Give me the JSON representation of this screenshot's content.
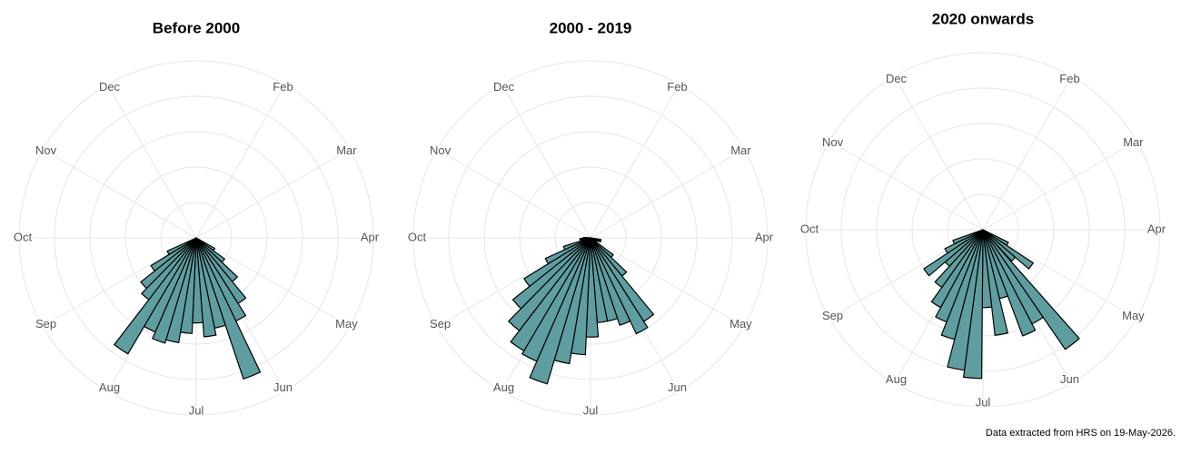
{
  "chart_data": [
    {
      "type": "polar_bar",
      "title": "Before 2000",
      "color": "#5f9ea0",
      "bar_width": 7,
      "x": [
        123,
        130,
        137,
        144,
        151,
        158,
        165,
        172,
        179,
        186,
        193,
        200,
        207,
        214,
        221,
        228,
        235,
        242
      ],
      "values": [
        6,
        10,
        16,
        22,
        26,
        42,
        26,
        28,
        24,
        27,
        30,
        31,
        29,
        38,
        22,
        20,
        15,
        9
      ],
      "xlim": [
        0,
        360
      ],
      "xticks": [
        {
          "value": 30,
          "label": "Feb"
        },
        {
          "value": 60,
          "label": "Mar"
        },
        {
          "value": 90,
          "label": "Apr"
        },
        {
          "value": 120,
          "label": "May"
        },
        {
          "value": 150,
          "label": "Jun"
        },
        {
          "value": 180,
          "label": "Jul"
        },
        {
          "value": 210,
          "label": "Aug"
        },
        {
          "value": 240,
          "label": "Sep"
        },
        {
          "value": 270,
          "label": "Oct"
        },
        {
          "value": 300,
          "label": "Nov"
        },
        {
          "value": 330,
          "label": "Dec"
        }
      ],
      "ylim": [
        0,
        50
      ],
      "yticks": [
        10,
        20,
        30,
        40,
        50
      ],
      "grid": true
    },
    {
      "type": "polar_bar",
      "title": "2000 - 2019",
      "color": "#5f9ea0",
      "bar_width": 7,
      "x": [
        102,
        109,
        116,
        123,
        130,
        137,
        144,
        151,
        158,
        165,
        172,
        179,
        186,
        193,
        200,
        207,
        214,
        221,
        228,
        235,
        242,
        249,
        256,
        263,
        270
      ],
      "values": [
        3,
        3,
        2,
        2,
        8,
        14,
        28,
        30,
        26,
        24,
        24,
        28,
        33,
        36,
        43,
        38,
        37,
        33,
        28,
        22,
        14,
        8,
        2,
        3,
        2
      ],
      "xlim": [
        0,
        360
      ],
      "xticks": [
        {
          "value": 30,
          "label": "Feb"
        },
        {
          "value": 60,
          "label": "Mar"
        },
        {
          "value": 90,
          "label": "Apr"
        },
        {
          "value": 120,
          "label": "May"
        },
        {
          "value": 150,
          "label": "Jun"
        },
        {
          "value": 180,
          "label": "Jul"
        },
        {
          "value": 210,
          "label": "Aug"
        },
        {
          "value": 240,
          "label": "Sep"
        },
        {
          "value": 270,
          "label": "Oct"
        },
        {
          "value": 300,
          "label": "Nov"
        },
        {
          "value": 330,
          "label": "Dec"
        }
      ],
      "ylim": [
        0,
        50
      ],
      "yticks": [
        10,
        20,
        30,
        40,
        50
      ],
      "grid": true
    },
    {
      "type": "polar_bar",
      "title": "2020 onwards",
      "color": "#5f9ea0",
      "bar_width": 7,
      "x": [
        120,
        127,
        134,
        142,
        149,
        156,
        163,
        170,
        177,
        184,
        191,
        198,
        205,
        212,
        219,
        226,
        233,
        240,
        247
      ],
      "values": [
        8,
        17,
        12,
        41,
        30,
        32,
        20,
        30,
        22,
        42,
        40,
        32,
        28,
        25,
        20,
        14,
        20,
        12,
        9
      ],
      "xlim": [
        0,
        360
      ],
      "xticks": [
        {
          "value": 30,
          "label": "Feb"
        },
        {
          "value": 60,
          "label": "Mar"
        },
        {
          "value": 90,
          "label": "Apr"
        },
        {
          "value": 120,
          "label": "May"
        },
        {
          "value": 150,
          "label": "Jun"
        },
        {
          "value": 180,
          "label": "Jul"
        },
        {
          "value": 210,
          "label": "Aug"
        },
        {
          "value": 240,
          "label": "Sep"
        },
        {
          "value": 270,
          "label": "Oct"
        },
        {
          "value": 300,
          "label": "Nov"
        },
        {
          "value": 330,
          "label": "Dec"
        }
      ],
      "ylim": [
        0,
        50
      ],
      "yticks": [
        10,
        20,
        30,
        40,
        50
      ],
      "grid": true
    }
  ],
  "footnote": "Data extracted from HRS on 19-May-2026."
}
